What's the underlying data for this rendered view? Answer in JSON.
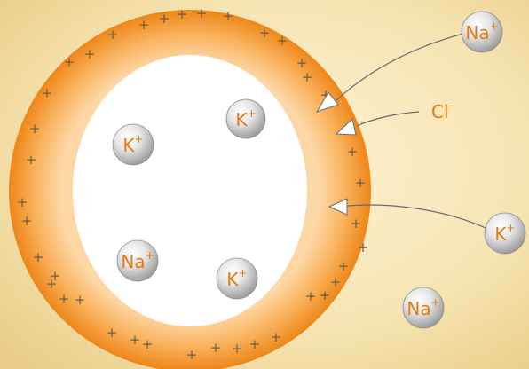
{
  "colors": {
    "membrane_outer": "#ef8a1a",
    "membrane_inner": "#fdd199",
    "cell_interior": "#ffffff",
    "ion_text": "#e8780e",
    "plus_sign": "#6b5a45",
    "background": "#f3e4b8",
    "arrow_line": "#6b6b6b"
  },
  "icons": {
    "ion": "grey-sphere-icon",
    "arrowhead": "open-triangle-arrowhead-icon"
  },
  "membrane": {
    "charge_symbol": "+"
  },
  "ions": {
    "inside": [
      {
        "symbol": "K",
        "charge": "+"
      },
      {
        "symbol": "K",
        "charge": "+"
      },
      {
        "symbol": "Na",
        "charge": "+"
      },
      {
        "symbol": "K",
        "charge": "+"
      }
    ],
    "outside": [
      {
        "symbol": "Na",
        "charge": "+"
      },
      {
        "symbol": "K",
        "charge": "+"
      },
      {
        "symbol": "Na",
        "charge": "+"
      }
    ]
  },
  "chloride": {
    "symbol": "Cl",
    "charge": "–"
  }
}
